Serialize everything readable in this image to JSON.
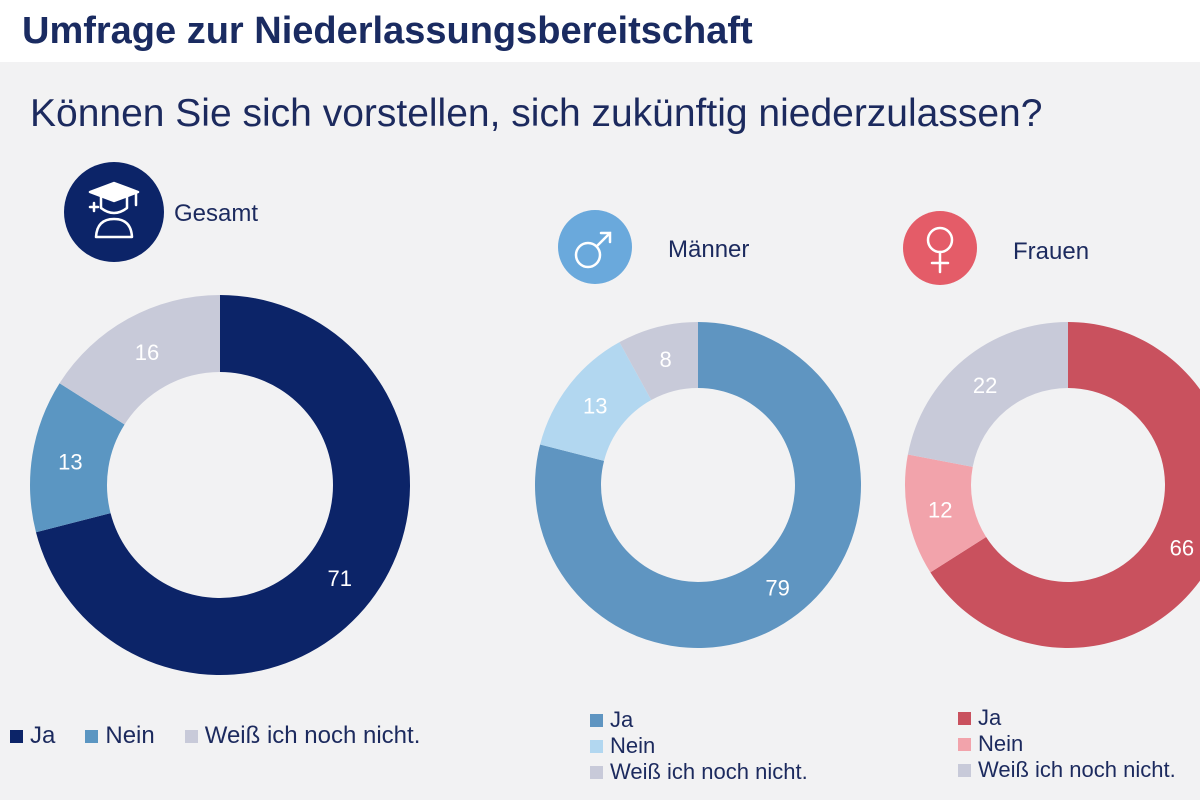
{
  "header": {
    "title": "Umfrage zur Niederlassungsbereitschaft",
    "question": "Können Sie sich vorstellen, sich zukünftig niederzulassen?"
  },
  "icons": {
    "gesamt": "graduate-icon",
    "maenner": "male-symbol-icon",
    "frauen": "female-symbol-icon"
  },
  "chart_data": [
    {
      "type": "pie",
      "title": "Gesamt",
      "categories": [
        "Ja",
        "Nein",
        "Weiß ich noch nicht."
      ],
      "values": [
        71,
        13,
        16
      ],
      "labels": [
        "71",
        "13",
        "16"
      ],
      "colors": [
        "#0c2468",
        "#5b96c2",
        "#c8cad9"
      ],
      "badge_color": "#0c2468",
      "legend_placement": "bottom"
    },
    {
      "type": "pie",
      "title": "Männer",
      "categories": [
        "Ja",
        "Nein",
        "Weiß ich noch nicht."
      ],
      "values": [
        79,
        13,
        8
      ],
      "labels": [
        "79",
        "13",
        "8"
      ],
      "colors": [
        "#5f95c1",
        "#b2d7f0",
        "#c8cad9"
      ],
      "badge_color": "#6aa9dc",
      "legend_placement": "bottom"
    },
    {
      "type": "pie",
      "title": "Frauen",
      "categories": [
        "Ja",
        "Nein",
        "Weiß ich noch nicht."
      ],
      "values": [
        66,
        12,
        22
      ],
      "labels": [
        "66",
        "12",
        "22"
      ],
      "colors": [
        "#c9515e",
        "#f2a3ab",
        "#c8cad9"
      ],
      "badge_color": "#e45c68",
      "legend_placement": "bottom"
    }
  ]
}
